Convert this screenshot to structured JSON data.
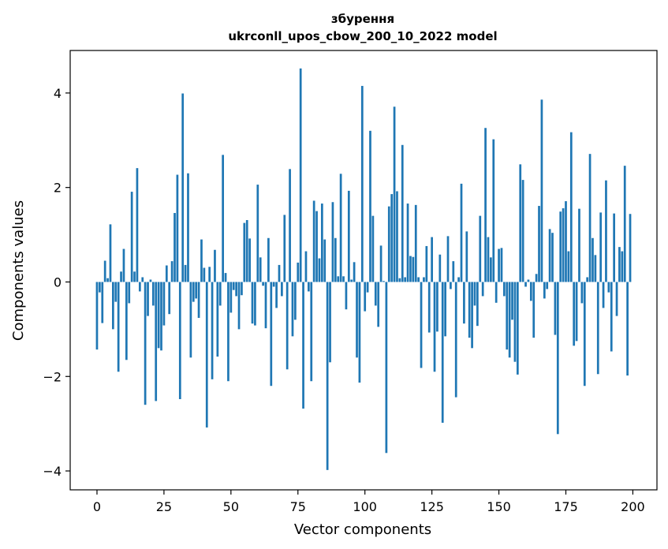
{
  "chart_data": {
    "type": "bar",
    "title_line1": "збурення",
    "title_line2": "ukrconll_upos_cbow_200_10_2022 model",
    "xlabel": "Vector components",
    "ylabel": "Components values",
    "xlim": [
      -10,
      209
    ],
    "ylim": [
      -4.4,
      4.9
    ],
    "xticks": [
      0,
      25,
      50,
      75,
      100,
      125,
      150,
      175,
      200
    ],
    "xtick_labels": [
      "0",
      "25",
      "50",
      "75",
      "100",
      "125",
      "150",
      "175",
      "200"
    ],
    "yticks": [
      -4,
      -2,
      0,
      2,
      4
    ],
    "ytick_labels": [
      "−4",
      "−2",
      "0",
      "2",
      "4"
    ],
    "grid": false,
    "bar_color": "#1f77b4",
    "x": [
      0,
      1,
      2,
      3,
      4,
      5,
      6,
      7,
      8,
      9,
      10,
      11,
      12,
      13,
      14,
      15,
      16,
      17,
      18,
      19,
      20,
      21,
      22,
      23,
      24,
      25,
      26,
      27,
      28,
      29,
      30,
      31,
      32,
      33,
      34,
      35,
      36,
      37,
      38,
      39,
      40,
      41,
      42,
      43,
      44,
      45,
      46,
      47,
      48,
      49,
      50,
      51,
      52,
      53,
      54,
      55,
      56,
      57,
      58,
      59,
      60,
      61,
      62,
      63,
      64,
      65,
      66,
      67,
      68,
      69,
      70,
      71,
      72,
      73,
      74,
      75,
      76,
      77,
      78,
      79,
      80,
      81,
      82,
      83,
      84,
      85,
      86,
      87,
      88,
      89,
      90,
      91,
      92,
      93,
      94,
      95,
      96,
      97,
      98,
      99,
      100,
      101,
      102,
      103,
      104,
      105,
      106,
      107,
      108,
      109,
      110,
      111,
      112,
      113,
      114,
      115,
      116,
      117,
      118,
      119,
      120,
      121,
      122,
      123,
      124,
      125,
      126,
      127,
      128,
      129,
      130,
      131,
      132,
      133,
      134,
      135,
      136,
      137,
      138,
      139,
      140,
      141,
      142,
      143,
      144,
      145,
      146,
      147,
      148,
      149,
      150,
      151,
      152,
      153,
      154,
      155,
      156,
      157,
      158,
      159,
      160,
      161,
      162,
      163,
      164,
      165,
      166,
      167,
      168,
      169,
      170,
      171,
      172,
      173,
      174,
      175,
      176,
      177,
      178,
      179,
      180,
      181,
      182,
      183,
      184,
      185,
      186,
      187,
      188,
      189,
      190,
      191,
      192,
      193,
      194,
      195,
      196,
      197,
      198,
      199
    ],
    "values": [
      -1.43,
      -0.22,
      -0.87,
      0.45,
      0.08,
      1.22,
      -1.0,
      -0.42,
      -1.9,
      0.22,
      0.7,
      -1.65,
      -0.45,
      1.91,
      0.22,
      2.41,
      -0.2,
      0.1,
      -2.6,
      -0.72,
      0.05,
      -0.5,
      -2.52,
      -1.4,
      -1.45,
      -0.92,
      0.35,
      -0.68,
      0.44,
      1.46,
      2.27,
      -2.48,
      3.99,
      0.36,
      2.3,
      -1.6,
      -0.42,
      -0.35,
      -0.76,
      0.9,
      0.3,
      -3.08,
      0.32,
      -2.06,
      0.68,
      -1.58,
      -0.5,
      2.69,
      0.19,
      -2.1,
      -0.65,
      -0.17,
      -0.3,
      -1.0,
      -0.28,
      1.25,
      1.31,
      0.92,
      -0.88,
      -0.92,
      2.06,
      0.52,
      -0.08,
      -0.98,
      0.93,
      -2.2,
      -0.1,
      -0.55,
      0.36,
      -0.3,
      1.42,
      -1.85,
      2.39,
      -1.15,
      -0.8,
      0.41,
      4.52,
      -2.68,
      0.65,
      -0.2,
      -2.1,
      1.72,
      1.5,
      0.5,
      1.66,
      0.9,
      -3.98,
      -1.7,
      1.69,
      0.93,
      0.12,
      2.29,
      0.12,
      -0.58,
      1.93,
      0.05,
      0.42,
      -1.6,
      -2.13,
      4.15,
      -0.62,
      -0.22,
      3.2,
      1.4,
      -0.5,
      -0.95,
      0.77,
      0.02,
      -3.62,
      1.6,
      1.86,
      3.71,
      1.92,
      0.08,
      2.9,
      0.1,
      1.66,
      0.55,
      0.53,
      1.63,
      0.1,
      -1.82,
      0.1,
      0.76,
      -1.07,
      0.95,
      -1.9,
      -1.05,
      0.58,
      -2.98,
      -1.15,
      0.97,
      -0.15,
      0.44,
      -2.44,
      0.1,
      2.08,
      -0.88,
      1.07,
      -1.18,
      -1.4,
      -0.5,
      -0.93,
      1.4,
      -0.3,
      3.26,
      0.95,
      0.52,
      3.02,
      -0.44,
      0.7,
      0.72,
      -0.3,
      -1.43,
      -1.6,
      -0.8,
      -1.69,
      -1.96,
      2.49,
      2.16,
      -0.1,
      0.05,
      -0.4,
      -1.18,
      0.17,
      1.61,
      3.86,
      -0.35,
      -0.15,
      1.12,
      1.04,
      -1.12,
      -3.22,
      1.49,
      1.56,
      1.71,
      0.65,
      3.17,
      -1.35,
      -1.25,
      1.55,
      -0.45,
      -2.2,
      0.1,
      2.71,
      0.93,
      0.57,
      -1.95,
      1.47,
      -0.55,
      2.15,
      -0.22,
      -1.47,
      1.45,
      -0.72,
      0.74,
      0.65,
      2.46,
      -1.98,
      1.44
    ]
  }
}
